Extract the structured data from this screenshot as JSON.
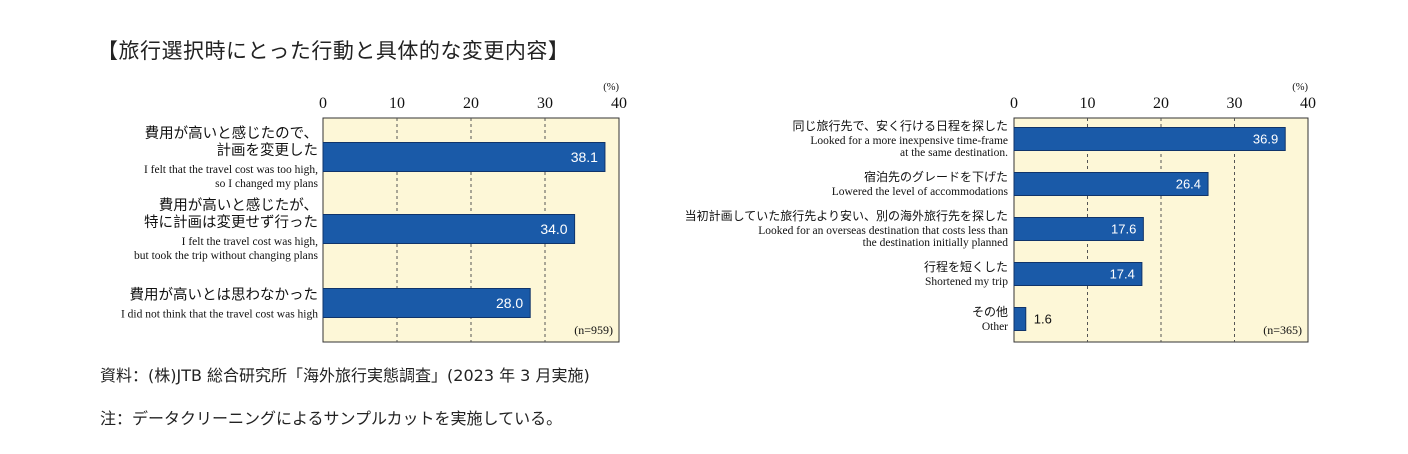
{
  "page": {
    "title": "【旅行選択時にとった行動と具体的な変更内容】",
    "source_note": "資料：(株)JTB 総合研究所「海外旅行実態調査」(2023 年 3 月実施)",
    "note": "注：データクリーニングによるサンプルカットを実施している。"
  },
  "colors": {
    "bar": "#1a5aa8",
    "bar_outline": "#10346a",
    "plot_bg": "#fdf7d7",
    "grid": "#555555"
  },
  "chart_data": [
    {
      "type": "bar",
      "orientation": "horizontal",
      "unit": "(%)",
      "xlim": [
        0,
        40
      ],
      "ticks": [
        0,
        10,
        20,
        30,
        40
      ],
      "grid": true,
      "sample_size": "(n=959)",
      "categories": [
        {
          "ja": [
            "費用が高いと感じたので、",
            "計画を変更した"
          ],
          "en": [
            "I felt that the travel cost was too high,",
            "so I changed my plans"
          ],
          "value": 38.1,
          "label": "38.1"
        },
        {
          "ja": [
            "費用が高いと感じたが、",
            "特に計画は変更せず行った"
          ],
          "en": [
            "I felt the travel cost was high,",
            "but took the trip without changing plans"
          ],
          "value": 34.0,
          "label": "34.0"
        },
        {
          "ja": [
            "費用が高いとは思わなかった"
          ],
          "en": [
            "I did not think that the travel cost was high"
          ],
          "value": 28.0,
          "label": "28.0"
        }
      ]
    },
    {
      "type": "bar",
      "orientation": "horizontal",
      "unit": "(%)",
      "xlim": [
        0,
        40
      ],
      "ticks": [
        0,
        10,
        20,
        30,
        40
      ],
      "grid": true,
      "sample_size": "(n=365)",
      "categories": [
        {
          "ja": [
            "同じ旅行先で、安く行ける日程を探した"
          ],
          "en": [
            "Looked for a more inexpensive time-frame",
            "at the same destination."
          ],
          "value": 36.9,
          "label": "36.9"
        },
        {
          "ja": [
            "宿泊先のグレードを下げた"
          ],
          "en": [
            "Lowered the level of accommodations"
          ],
          "value": 26.4,
          "label": "26.4"
        },
        {
          "ja": [
            "当初計画していた旅行先より安い、別の海外旅行先を探した"
          ],
          "en": [
            "Looked for an overseas destination that costs less than",
            "the destination initially planned"
          ],
          "value": 17.6,
          "label": "17.6"
        },
        {
          "ja": [
            "行程を短くした"
          ],
          "en": [
            "Shortened my trip"
          ],
          "value": 17.4,
          "label": "17.4"
        },
        {
          "ja": [
            "その他"
          ],
          "en": [
            "Other"
          ],
          "value": 1.6,
          "label": "1.6"
        }
      ]
    }
  ]
}
